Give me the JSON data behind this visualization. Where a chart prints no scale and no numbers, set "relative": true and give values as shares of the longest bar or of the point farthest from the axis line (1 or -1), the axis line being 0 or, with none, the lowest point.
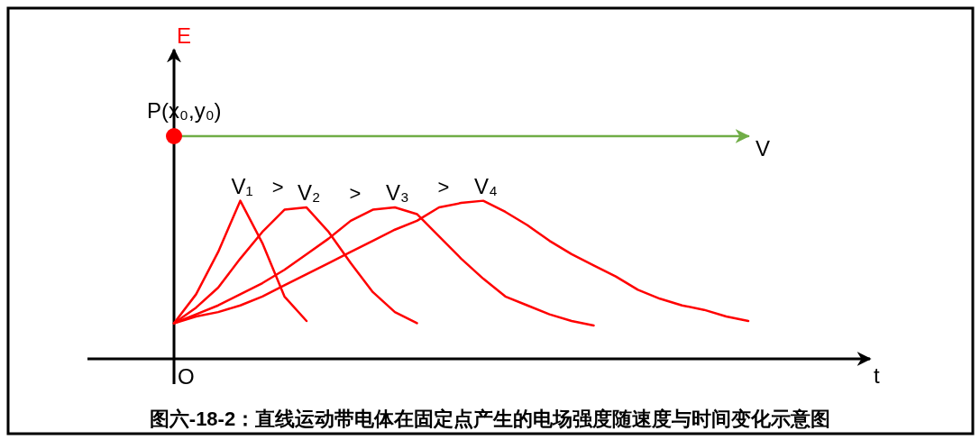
{
  "chart_data": {
    "type": "line",
    "relative": true,
    "title": "图六-18-2：直线运动带电体在固定点产生的电场强度随速度与时间变化示意图",
    "ylabel": "E",
    "categories": [
      null,
      null,
      null,
      null,
      null,
      null,
      null,
      null,
      null,
      null,
      null,
      null,
      null,
      null,
      null,
      null,
      null,
      null,
      null,
      null,
      null,
      null,
      null,
      null,
      null,
      null,
      null
    ],
    "annotations": [
      "O",
      "t",
      ">",
      ">",
      ">",
      {
        "text": "P(x₀,y₀)",
        "y": 1
      }
    ],
    "series": [
      {
        "name": "V",
        "color": "#70ad47",
        "type": "line",
        "values": [
          1,
          1,
          1,
          1,
          1,
          1,
          1,
          1,
          1,
          1,
          1,
          1,
          1,
          1,
          1,
          1,
          1,
          1,
          1,
          1,
          1,
          1,
          1,
          1,
          1,
          1,
          1
        ]
      },
      {
        "name": "V₁",
        "color": "#ff0000",
        "values": [
          0.16,
          0.29,
          0.48,
          0.71,
          0.52,
          0.28,
          0.17,
          null,
          null,
          null,
          null,
          null,
          null,
          null,
          null,
          null,
          null,
          null,
          null,
          null,
          null,
          null,
          null,
          null,
          null,
          null,
          null
        ]
      },
      {
        "name": "V₂",
        "color": "#ff0000",
        "values": [
          0.16,
          0.23,
          0.32,
          0.45,
          0.57,
          0.67,
          0.68,
          0.57,
          0.43,
          0.3,
          0.21,
          0.16,
          null,
          null,
          null,
          null,
          null,
          null,
          null,
          null,
          null,
          null,
          null,
          null,
          null,
          null,
          null
        ]
      },
      {
        "name": "V₃",
        "color": "#ff0000",
        "values": [
          0.16,
          0.2,
          0.24,
          0.29,
          0.34,
          0.4,
          0.47,
          0.54,
          0.62,
          0.67,
          0.68,
          0.65,
          0.55,
          0.45,
          0.36,
          0.28,
          0.24,
          0.2,
          0.17,
          0.15,
          null,
          null,
          null,
          null,
          null,
          null,
          null
        ]
      },
      {
        "name": "V₄",
        "color": "#ff0000",
        "values": [
          0.16,
          0.19,
          0.21,
          0.24,
          0.28,
          0.33,
          0.38,
          0.43,
          0.48,
          0.53,
          0.58,
          0.62,
          0.68,
          0.7,
          0.71,
          0.66,
          0.6,
          0.53,
          0.47,
          0.42,
          0.37,
          0.31,
          0.27,
          0.24,
          0.22,
          0.19,
          0.17
        ]
      }
    ],
    "line_style": "solid"
  }
}
